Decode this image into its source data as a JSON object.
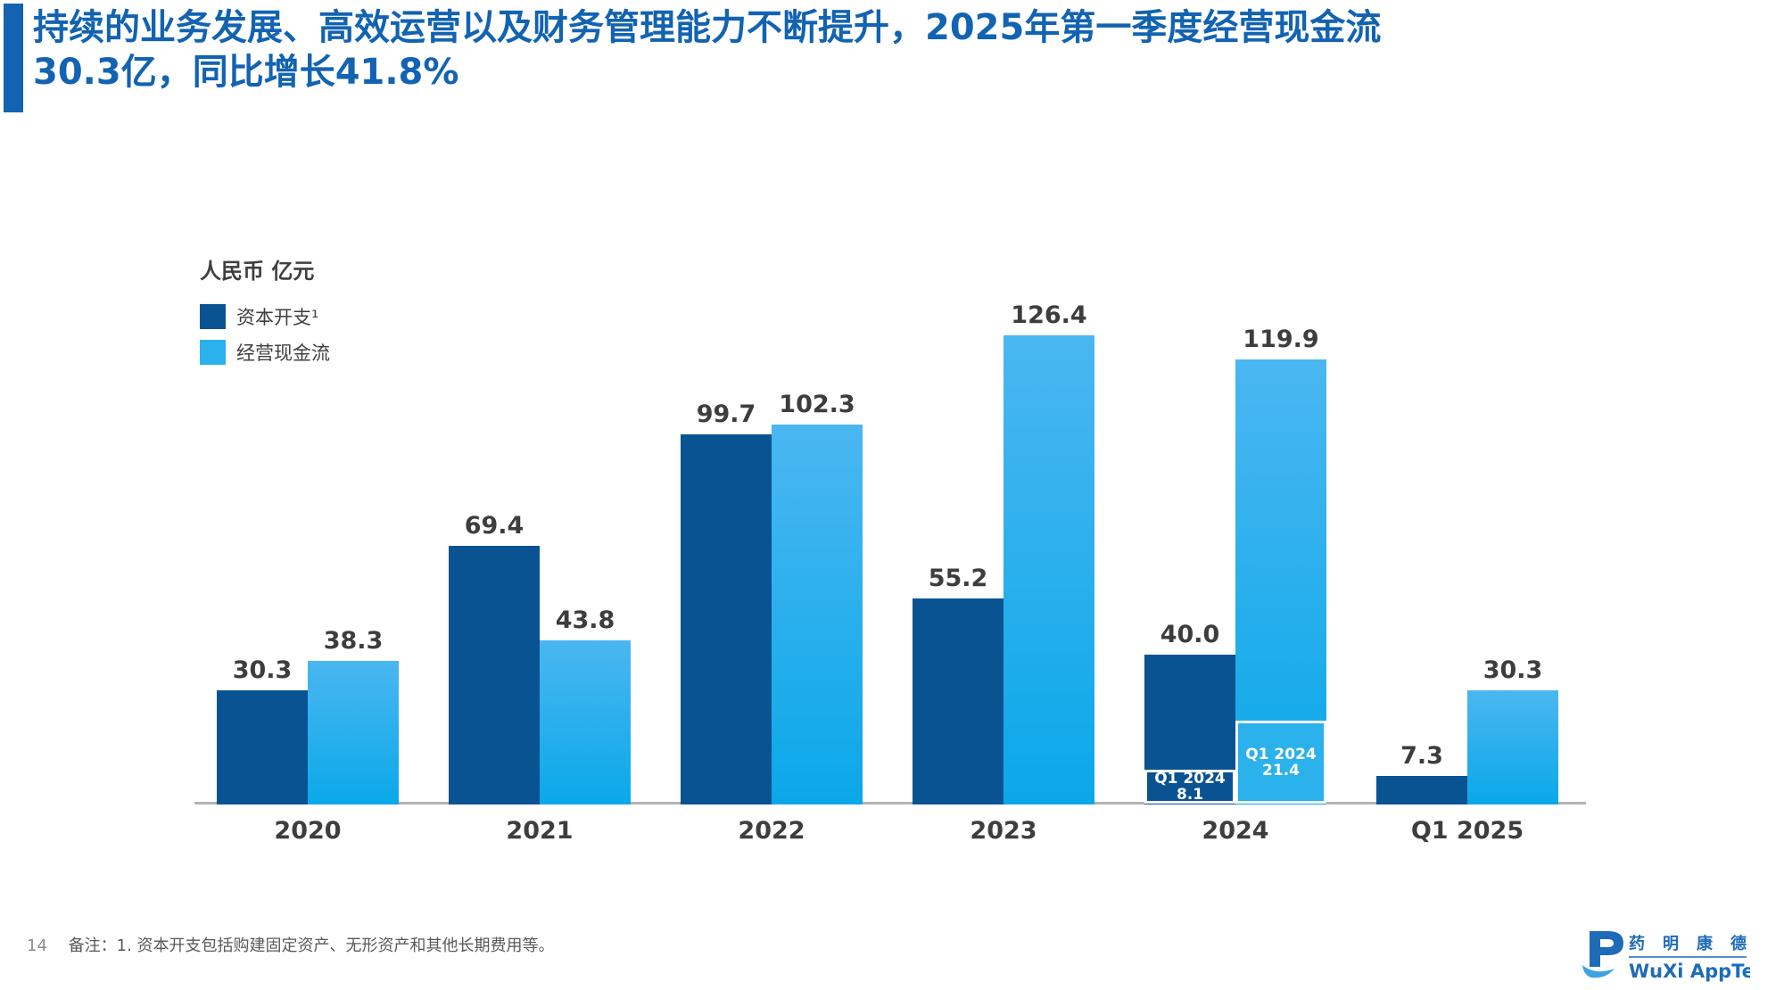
{
  "header": {
    "title_line1": "持续的业务发展、高效运营以及财务管理能力不断提升，2025年第一季度经营现金流",
    "title_line2": "30.3亿，同比增长41.8%",
    "accent_color": "#1263B2"
  },
  "chart_data": {
    "type": "bar",
    "unit_label": "人民币 亿元",
    "categories": [
      "2020",
      "2021",
      "2022",
      "2023",
      "2024",
      "Q1 2025"
    ],
    "series": [
      {
        "name": "资本开支¹",
        "color": "#0A5392",
        "values": [
          30.3,
          69.4,
          99.7,
          55.2,
          40.0,
          7.3
        ],
        "labels": [
          "30.3",
          "69.4",
          "99.7",
          "55.2",
          "40.0",
          "7.3"
        ]
      },
      {
        "name": "经营现金流",
        "color": "#2BB1EC",
        "gradient_top": "#4AB7F1",
        "gradient_bottom": "#0AA8E9",
        "values": [
          38.3,
          43.8,
          102.3,
          126.4,
          119.9,
          30.3
        ],
        "labels": [
          "38.3",
          "43.8",
          "102.3",
          "126.4",
          "119.9",
          "30.3"
        ]
      }
    ],
    "annotations": [
      {
        "series": 0,
        "group": 4,
        "line1": "Q1 2024",
        "line2": "8.1",
        "value": 8.1
      },
      {
        "series": 1,
        "group": 4,
        "line1": "Q1 2024",
        "line2": "21.4",
        "value": 21.4
      }
    ],
    "ylim": [
      0,
      130
    ],
    "grid": false,
    "legend_position": "top-left",
    "label_color": "#3D3D3D",
    "axis_color": "#B3B3B3"
  },
  "footer": {
    "page_number": "14",
    "note": "备注：1. 资本开支包括购建固定资产、无形资产和其他长期费用等。"
  },
  "logo": {
    "cn_name": "药明康德",
    "en_name": "WuXi AppTec",
    "color": "#1E6BB8"
  }
}
